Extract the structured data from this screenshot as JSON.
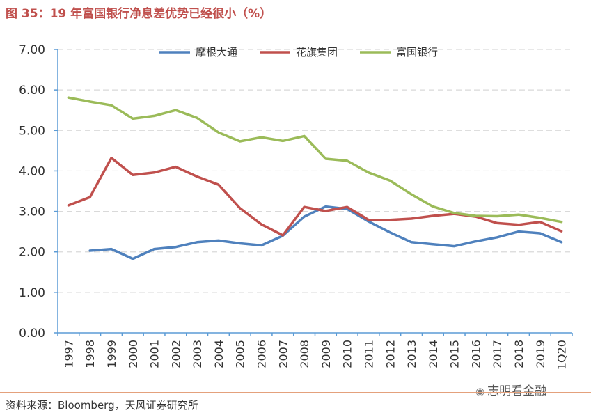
{
  "header": {
    "title": "图 35：19 年富国银行净息差优势已经很小（%）"
  },
  "footer": {
    "source": "资料来源：Bloomberg，天风证券研究所"
  },
  "watermark": {
    "icon": "wechat-icon",
    "text": "志明看金融"
  },
  "colors": {
    "title": "#c0504d",
    "axis": "#5b9bd5",
    "grid": "#d9d9d9"
  },
  "chart_data": {
    "type": "line",
    "title": "",
    "xlabel": "",
    "ylabel": "",
    "ylim": [
      0,
      7
    ],
    "y_ticks": [
      "0.00",
      "1.00",
      "2.00",
      "3.00",
      "4.00",
      "5.00",
      "6.00",
      "7.00"
    ],
    "grid": "horizontal dashed",
    "legend_position": "top",
    "categories": [
      "1997",
      "1998",
      "1999",
      "2000",
      "2001",
      "2002",
      "2003",
      "2004",
      "2005",
      "2006",
      "2007",
      "2008",
      "2009",
      "2010",
      "2011",
      "2012",
      "2013",
      "2014",
      "2015",
      "2016",
      "2017",
      "2018",
      "2019",
      "1Q20"
    ],
    "series": [
      {
        "name": "摩根大通",
        "color": "#4f81bd",
        "values": [
          null,
          2.03,
          2.07,
          1.83,
          2.07,
          2.12,
          2.24,
          2.28,
          2.21,
          2.16,
          2.4,
          2.87,
          3.12,
          3.06,
          2.75,
          2.48,
          2.24,
          2.19,
          2.14,
          2.26,
          2.36,
          2.5,
          2.46,
          2.24
        ]
      },
      {
        "name": "花旗集团",
        "color": "#c0504d",
        "values": [
          3.15,
          3.35,
          4.32,
          3.9,
          3.96,
          4.1,
          3.86,
          3.66,
          3.08,
          2.68,
          2.41,
          3.11,
          3.01,
          3.11,
          2.79,
          2.79,
          2.82,
          2.89,
          2.94,
          2.87,
          2.71,
          2.67,
          2.74,
          2.51
        ]
      },
      {
        "name": "富国银行",
        "color": "#9bbb59",
        "values": [
          5.81,
          5.71,
          5.62,
          5.29,
          5.36,
          5.5,
          5.31,
          4.95,
          4.73,
          4.83,
          4.74,
          4.86,
          4.3,
          4.25,
          3.96,
          3.76,
          3.42,
          3.12,
          2.96,
          2.89,
          2.88,
          2.92,
          2.84,
          2.74
        ]
      }
    ]
  }
}
